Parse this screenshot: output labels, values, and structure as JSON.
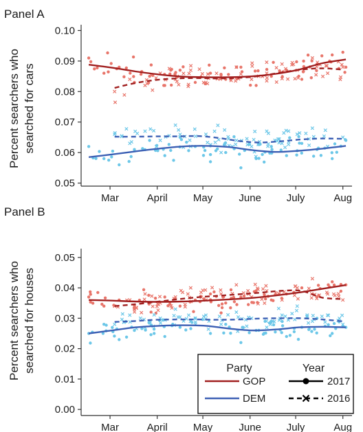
{
  "chart_data": [
    {
      "type": "scatter",
      "title": "Panel A",
      "ylabel": [
        "Percent searchers who",
        "searched for cars"
      ],
      "xlabel": "",
      "x_tick_labels": [
        "Mar",
        "April",
        "May",
        "June",
        "July",
        "Aug"
      ],
      "y_tick_labels": [
        "0.05",
        "0.06",
        "0.07",
        "0.08",
        "0.09",
        "0.10"
      ],
      "y_ticks": [
        0.05,
        0.06,
        0.07,
        0.08,
        0.09,
        0.1
      ],
      "ylim": [
        0.049,
        0.101
      ],
      "x_ticks": [
        "2017-03-01",
        "2017-04-01",
        "2017-05-01",
        "2017-06-01",
        "2017-07-01",
        "2017-08-01"
      ],
      "xlim": [
        "2017-02-10",
        "2017-08-07"
      ],
      "series": [
        {
          "party": "GOP",
          "year": "2017",
          "color": "#e8756a",
          "x": [
            "2017-02-15",
            "2017-02-25",
            "2017-03-07",
            "2017-03-17",
            "2017-03-27",
            "2017-04-06",
            "2017-04-16",
            "2017-04-26",
            "2017-05-06",
            "2017-05-16",
            "2017-05-26",
            "2017-06-05",
            "2017-06-15",
            "2017-06-25",
            "2017-07-05",
            "2017-07-15",
            "2017-07-25",
            "2017-08-03"
          ],
          "y": [
            0.091,
            0.086,
            0.088,
            0.083,
            0.085,
            0.082,
            0.087,
            0.083,
            0.086,
            0.084,
            0.088,
            0.082,
            0.085,
            0.087,
            0.084,
            0.089,
            0.092,
            0.088
          ],
          "fit": [
            0.0888,
            0.0878,
            0.0866,
            0.0856,
            0.0849,
            0.0847,
            0.0847,
            0.085,
            0.0858,
            0.0872,
            0.0893,
            0.0905
          ]
        },
        {
          "party": "GOP",
          "year": "2016",
          "color": "#e8756a",
          "x": [
            "2017-03-04",
            "2017-03-14",
            "2017-03-24",
            "2017-04-03",
            "2017-04-13",
            "2017-04-23",
            "2017-05-03",
            "2017-05-13",
            "2017-05-23",
            "2017-06-02",
            "2017-06-12",
            "2017-06-22",
            "2017-07-02",
            "2017-07-12",
            "2017-07-22",
            "2017-08-01"
          ],
          "y": [
            0.08,
            0.084,
            0.082,
            0.086,
            0.084,
            0.087,
            0.083,
            0.085,
            0.088,
            0.084,
            0.086,
            0.089,
            0.087,
            0.091,
            0.086,
            0.088
          ],
          "fit": [
            0.0812,
            0.0828,
            0.0838,
            0.0843,
            0.0844,
            0.0843,
            0.0845,
            0.0851,
            0.0862,
            0.0872,
            0.0876,
            0.0872
          ]
        },
        {
          "party": "DEM",
          "year": "2017",
          "color": "#6cc7e8",
          "x": [
            "2017-02-15",
            "2017-02-25",
            "2017-03-07",
            "2017-03-17",
            "2017-03-27",
            "2017-04-06",
            "2017-04-16",
            "2017-04-26",
            "2017-05-06",
            "2017-05-16",
            "2017-05-26",
            "2017-06-05",
            "2017-06-15",
            "2017-06-25",
            "2017-07-05",
            "2017-07-15",
            "2017-07-25",
            "2017-08-03"
          ],
          "y": [
            0.062,
            0.058,
            0.056,
            0.061,
            0.064,
            0.059,
            0.065,
            0.062,
            0.057,
            0.06,
            0.055,
            0.058,
            0.062,
            0.059,
            0.063,
            0.061,
            0.058,
            0.064
          ],
          "fit": [
            0.0585,
            0.0594,
            0.0604,
            0.0613,
            0.062,
            0.0622,
            0.0618,
            0.0608,
            0.0602,
            0.0606,
            0.0613,
            0.0622
          ]
        },
        {
          "party": "DEM",
          "year": "2016",
          "color": "#6cc7e8",
          "x": [
            "2017-03-04",
            "2017-03-14",
            "2017-03-24",
            "2017-04-03",
            "2017-04-13",
            "2017-04-23",
            "2017-05-03",
            "2017-05-13",
            "2017-05-23",
            "2017-06-02",
            "2017-06-12",
            "2017-06-22",
            "2017-07-02",
            "2017-07-12",
            "2017-07-22",
            "2017-08-01"
          ],
          "y": [
            0.066,
            0.063,
            0.067,
            0.064,
            0.069,
            0.062,
            0.066,
            0.06,
            0.064,
            0.062,
            0.067,
            0.063,
            0.066,
            0.068,
            0.062,
            0.065
          ],
          "fit": [
            0.0652,
            0.0652,
            0.0653,
            0.0653,
            0.0654,
            0.0648,
            0.0638,
            0.0633,
            0.0637,
            0.0643,
            0.0646,
            0.0645
          ]
        }
      ]
    },
    {
      "type": "scatter",
      "title": "Panel B",
      "ylabel": [
        "Percent searchers who",
        "searched for houses"
      ],
      "xlabel": "",
      "x_tick_labels": [
        "Mar",
        "April",
        "May",
        "June",
        "July",
        "Aug"
      ],
      "y_tick_labels": [
        "0.00",
        "0.01",
        "0.02",
        "0.03",
        "0.04",
        "0.05"
      ],
      "y_ticks": [
        0.0,
        0.01,
        0.02,
        0.03,
        0.04,
        0.05
      ],
      "ylim": [
        -0.002,
        0.052
      ],
      "x_ticks": [
        "2017-03-01",
        "2017-04-01",
        "2017-05-01",
        "2017-06-01",
        "2017-07-01",
        "2017-08-01"
      ],
      "xlim": [
        "2017-02-10",
        "2017-08-07"
      ],
      "series": [
        {
          "party": "GOP",
          "year": "2017",
          "color": "#e8756a",
          "x": [
            "2017-02-15",
            "2017-02-25",
            "2017-03-07",
            "2017-03-17",
            "2017-03-27",
            "2017-04-06",
            "2017-04-16",
            "2017-04-26",
            "2017-05-06",
            "2017-05-16",
            "2017-05-26",
            "2017-06-05",
            "2017-06-15",
            "2017-06-25",
            "2017-07-05",
            "2017-07-15",
            "2017-07-25",
            "2017-08-03"
          ],
          "y": [
            0.037,
            0.034,
            0.036,
            0.033,
            0.035,
            0.037,
            0.034,
            0.036,
            0.038,
            0.035,
            0.037,
            0.039,
            0.036,
            0.038,
            0.04,
            0.037,
            0.042,
            0.041
          ],
          "fit": [
            0.036,
            0.0358,
            0.0355,
            0.0354,
            0.0355,
            0.0358,
            0.0362,
            0.0367,
            0.0375,
            0.0385,
            0.0397,
            0.0409
          ]
        },
        {
          "party": "GOP",
          "year": "2016",
          "color": "#e8756a",
          "x": [
            "2017-03-04",
            "2017-03-14",
            "2017-03-24",
            "2017-04-03",
            "2017-04-13",
            "2017-04-23",
            "2017-05-03",
            "2017-05-13",
            "2017-05-23",
            "2017-06-02",
            "2017-06-12",
            "2017-06-22",
            "2017-07-02",
            "2017-07-12",
            "2017-07-22",
            "2017-08-01"
          ],
          "y": [
            0.034,
            0.036,
            0.038,
            0.035,
            0.037,
            0.04,
            0.036,
            0.038,
            0.041,
            0.037,
            0.039,
            0.036,
            0.04,
            0.043,
            0.038,
            0.036
          ],
          "fit": [
            0.034,
            0.0346,
            0.0354,
            0.0362,
            0.0369,
            0.0374,
            0.0379,
            0.0384,
            0.039,
            0.039,
            0.0368,
            0.0363
          ]
        },
        {
          "party": "DEM",
          "year": "2017",
          "color": "#6cc7e8",
          "x": [
            "2017-02-15",
            "2017-02-25",
            "2017-03-07",
            "2017-03-17",
            "2017-03-27",
            "2017-04-06",
            "2017-04-16",
            "2017-04-26",
            "2017-05-06",
            "2017-05-16",
            "2017-05-26",
            "2017-06-05",
            "2017-06-15",
            "2017-06-25",
            "2017-07-05",
            "2017-07-15",
            "2017-07-25",
            "2017-08-03"
          ],
          "y": [
            0.025,
            0.028,
            0.023,
            0.026,
            0.029,
            0.024,
            0.027,
            0.03,
            0.025,
            0.028,
            0.022,
            0.026,
            0.029,
            0.024,
            0.027,
            0.03,
            0.025,
            0.027
          ],
          "fit": [
            0.025,
            0.026,
            0.027,
            0.0275,
            0.0277,
            0.0275,
            0.0266,
            0.026,
            0.0263,
            0.027,
            0.0272,
            0.027
          ]
        },
        {
          "party": "DEM",
          "year": "2016",
          "color": "#6cc7e8",
          "x": [
            "2017-03-04",
            "2017-03-14",
            "2017-03-24",
            "2017-04-03",
            "2017-04-13",
            "2017-04-23",
            "2017-05-03",
            "2017-05-13",
            "2017-05-23",
            "2017-06-02",
            "2017-06-12",
            "2017-06-22",
            "2017-07-02",
            "2017-07-12",
            "2017-07-22",
            "2017-08-01"
          ],
          "y": [
            0.028,
            0.031,
            0.027,
            0.03,
            0.033,
            0.029,
            0.031,
            0.028,
            0.032,
            0.03,
            0.027,
            0.031,
            0.034,
            0.029,
            0.031,
            0.028
          ],
          "fit": [
            0.0288,
            0.0291,
            0.0295,
            0.0296,
            0.0296,
            0.0295,
            0.0296,
            0.0299,
            0.03,
            0.03,
            0.0296,
            0.029
          ]
        }
      ]
    }
  ],
  "legend": {
    "location": "bottom-right of Panel B",
    "party_title": "Party",
    "year_title": "Year",
    "party_items": [
      {
        "label": "GOP",
        "color": "#a01e1e"
      },
      {
        "label": "DEM",
        "color": "#3b5fb4"
      }
    ],
    "year_items": [
      {
        "label": "2017",
        "line": "solid",
        "marker": "circle"
      },
      {
        "label": "2016",
        "line": "dashed",
        "marker": "cross"
      }
    ]
  },
  "colors": {
    "gop_line": "#a01e1e",
    "dem_line": "#3b5fb4",
    "gop_points": "#e8756a",
    "dem_points": "#6cc7e8",
    "axis": "#333333"
  }
}
